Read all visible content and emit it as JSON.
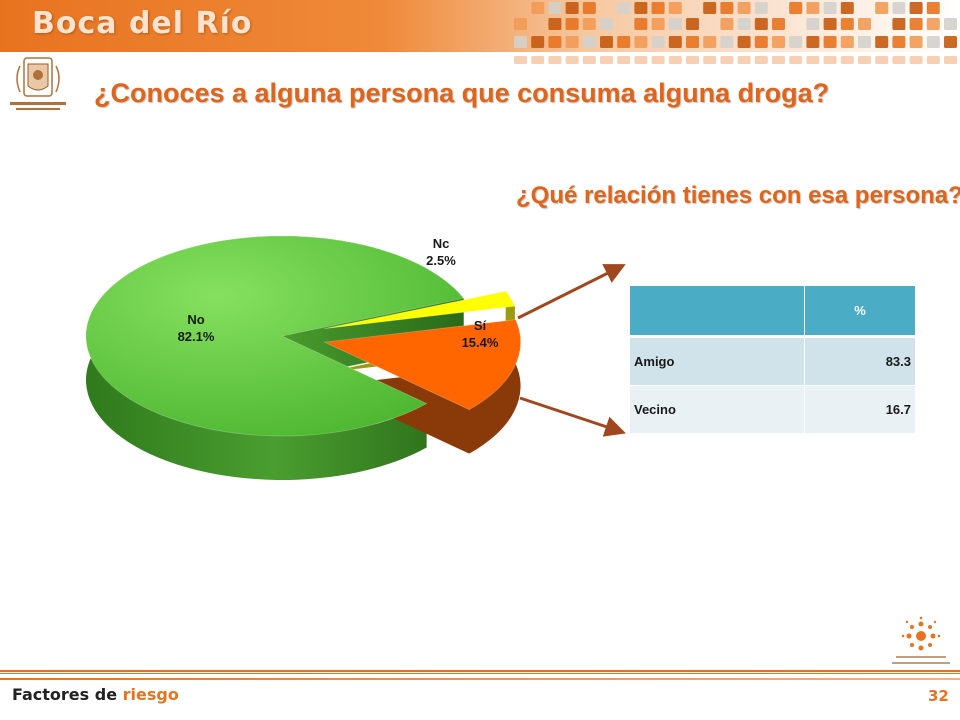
{
  "header": {
    "title": "Boca del Río"
  },
  "colors": {
    "accent": "#e8731f",
    "title": "#e0641a",
    "table_header": "#4bacc6",
    "arrow": "#a0471f"
  },
  "icons": {
    "university_logo": "university-crest-icon",
    "network_logo": "sun-dots-logo-icon"
  },
  "titles": {
    "question": "¿Conoces a alguna persona que consuma alguna droga?",
    "followup": "¿Qué relación tienes con esa persona?"
  },
  "chart_data": [
    {
      "type": "pie",
      "title": "",
      "slices": [
        {
          "label": "No",
          "value": 82.1,
          "value_label": "82.1%",
          "color": "#66cc44"
        },
        {
          "label": "Sí",
          "value": 15.4,
          "value_label": "15.4%",
          "color": "#ff6600"
        },
        {
          "label": "Nc",
          "value": 2.5,
          "value_label": "2.5%",
          "color": "#ffff00"
        }
      ]
    },
    {
      "type": "table",
      "title": "",
      "columns": [
        "",
        "%"
      ],
      "rows": [
        {
          "label": "Amigo",
          "value": "83.3"
        },
        {
          "label": "Vecino",
          "value": "16.7"
        }
      ]
    }
  ],
  "footer": {
    "label_part1": "Factores de ",
    "label_part2": "riesgo",
    "page_number": "32"
  }
}
